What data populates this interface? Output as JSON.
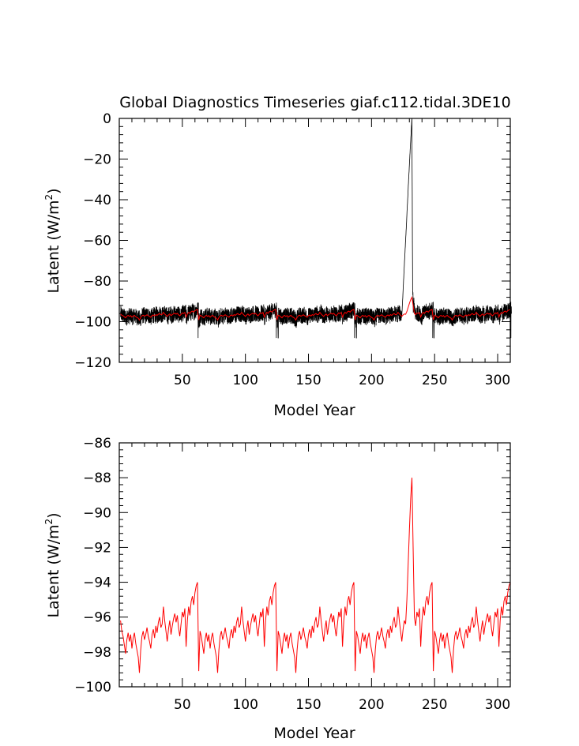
{
  "chart_data": [
    {
      "type": "line",
      "title": "Global Diagnostics Timeseries giaf.c112.tidal.3DE10",
      "xlabel": "Model Year",
      "ylabel": "Latent (W/m",
      "ylabel_sup": "2",
      "ylabel_close": ")",
      "xlim": [
        0,
        310
      ],
      "ylim": [
        -120,
        0
      ],
      "xticks": [
        50,
        100,
        150,
        200,
        250,
        300
      ],
      "xtick_labels": [
        "50",
        "100",
        "150",
        "200",
        "250",
        "300"
      ],
      "yticks": [
        0,
        -20,
        -40,
        -60,
        -80,
        -100,
        -120
      ],
      "ytick_labels": [
        "0",
        "−20",
        "−40",
        "−60",
        "−80",
        "−100",
        "−120"
      ],
      "series": [
        {
          "name": "monthly",
          "color": "#000000",
          "kind": "monthly_noise"
        },
        {
          "name": "annual",
          "color": "#ff0000",
          "kind": "annual"
        }
      ],
      "annotations": {
        "spike_year": 232,
        "spike_value": 0,
        "min_value": -108
      }
    },
    {
      "type": "line",
      "title": "",
      "xlabel": "Model Year",
      "ylabel": "Latent (W/m",
      "ylabel_sup": "2",
      "ylabel_close": ")",
      "xlim": [
        0,
        310
      ],
      "ylim": [
        -100,
        -86
      ],
      "xticks": [
        50,
        100,
        150,
        200,
        250,
        300
      ],
      "xtick_labels": [
        "50",
        "100",
        "150",
        "200",
        "250",
        "300"
      ],
      "yticks": [
        -86,
        -88,
        -90,
        -92,
        -94,
        -96,
        -98,
        -100
      ],
      "ytick_labels": [
        "−86",
        "−88",
        "−90",
        "−92",
        "−94",
        "−96",
        "−98",
        "−100"
      ],
      "series": [
        {
          "name": "annual",
          "color": "#ff0000",
          "kind": "annual"
        }
      ],
      "annotations": {
        "peak_year": 232,
        "peak_value": -88,
        "min_value": -99.2
      }
    }
  ],
  "annual_series": {
    "start_year": 1,
    "cycle_length": 62,
    "cycle_values": [
      -96.2,
      -96.8,
      -97.1,
      -97.6,
      -98.1,
      -97.3,
      -96.9,
      -97.4,
      -97.0,
      -97.8,
      -97.2,
      -96.9,
      -97.5,
      -97.9,
      -98.3,
      -99.2,
      -97.9,
      -97.1,
      -96.8,
      -97.3,
      -97.0,
      -96.6,
      -97.1,
      -97.4,
      -97.8,
      -97.0,
      -96.7,
      -97.2,
      -96.5,
      -96.9,
      -96.3,
      -96.0,
      -96.6,
      -96.4,
      -95.4,
      -96.2,
      -96.8,
      -97.4,
      -96.7,
      -96.2,
      -97.0,
      -96.5,
      -96.1,
      -95.8,
      -96.3,
      -95.9,
      -96.6,
      -97.1,
      -96.4,
      -95.7,
      -96.0,
      -95.5,
      -97.7,
      -96.2,
      -95.4,
      -95.9,
      -95.1,
      -94.8,
      -95.3,
      -94.6,
      -94.2,
      -94.0
    ],
    "restart_drop": -99.1,
    "spike_ramp": [
      [
        227,
        -96.4
      ],
      [
        228,
        -95.0
      ],
      [
        229,
        -93.0
      ],
      [
        230,
        -91.0
      ],
      [
        231,
        -89.2
      ],
      [
        232,
        -88.0
      ],
      [
        233,
        -92.0
      ],
      [
        234,
        -96.0
      ],
      [
        235,
        -96.5
      ]
    ]
  }
}
